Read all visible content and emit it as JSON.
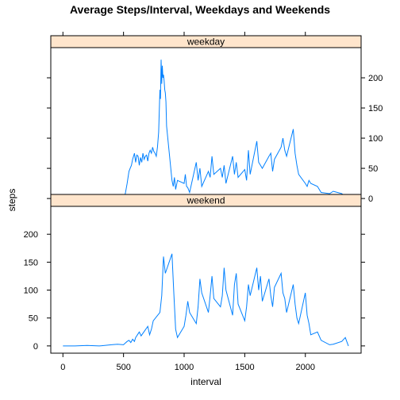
{
  "chart_data": {
    "type": "line",
    "title": "Average Steps/Interval, Weekdays and Weekends",
    "xlabel": "interval",
    "ylabel": "steps",
    "xlim": [
      -100,
      2460
    ],
    "ylim": [
      -13,
      250
    ],
    "x_ticks": [
      "0",
      "500",
      "1000",
      "1500",
      "2000"
    ],
    "y_ticks": [
      "0",
      "50",
      "100",
      "150",
      "200"
    ],
    "line_color": "#0080ff",
    "strip_color": "#ffe5cc",
    "panels": [
      {
        "name": "weekday",
        "x": [
          0,
          100,
          200,
          300,
          400,
          500,
          515,
          530,
          545,
          555,
          565,
          575,
          590,
          600,
          610,
          620,
          630,
          640,
          650,
          660,
          670,
          680,
          690,
          700,
          710,
          720,
          730,
          740,
          750,
          760,
          770,
          780,
          790,
          800,
          805,
          810,
          815,
          820,
          825,
          830,
          835,
          840,
          845,
          850,
          855,
          900,
          910,
          920,
          930,
          945,
          1000,
          1010,
          1020,
          1030,
          1045,
          1100,
          1115,
          1130,
          1145,
          1200,
          1215,
          1230,
          1245,
          1300,
          1315,
          1330,
          1345,
          1400,
          1415,
          1430,
          1445,
          1500,
          1515,
          1530,
          1545,
          1600,
          1615,
          1630,
          1645,
          1700,
          1715,
          1730,
          1745,
          1800,
          1815,
          1830,
          1845,
          1900,
          1915,
          1930,
          1945,
          2000,
          2015,
          2030,
          2045,
          2100,
          2130,
          2200,
          2230,
          2300,
          2330,
          2355
        ],
        "y": [
          2,
          1,
          1,
          0,
          1,
          2,
          8,
          25,
          45,
          50,
          55,
          65,
          75,
          60,
          72,
          70,
          55,
          68,
          60,
          75,
          65,
          70,
          72,
          62,
          75,
          80,
          75,
          85,
          78,
          75,
          70,
          85,
          110,
          180,
          165,
          230,
          190,
          220,
          200,
          205,
          195,
          180,
          175,
          160,
          120,
          30,
          20,
          35,
          15,
          30,
          25,
          40,
          20,
          18,
          10,
          60,
          30,
          50,
          20,
          45,
          35,
          70,
          40,
          50,
          35,
          55,
          25,
          70,
          40,
          60,
          35,
          48,
          30,
          80,
          40,
          95,
          60,
          55,
          50,
          70,
          75,
          45,
          65,
          85,
          100,
          80,
          70,
          115,
          75,
          55,
          40,
          25,
          20,
          30,
          25,
          20,
          10,
          8,
          12,
          8,
          3,
          1
        ]
      },
      {
        "name": "weekend",
        "x": [
          0,
          100,
          200,
          300,
          400,
          450,
          500,
          515,
          530,
          545,
          560,
          575,
          590,
          600,
          615,
          630,
          645,
          700,
          715,
          730,
          745,
          800,
          815,
          830,
          845,
          900,
          915,
          930,
          945,
          1000,
          1015,
          1030,
          1045,
          1100,
          1115,
          1130,
          1145,
          1200,
          1215,
          1230,
          1245,
          1300,
          1315,
          1330,
          1345,
          1400,
          1415,
          1430,
          1445,
          1500,
          1515,
          1530,
          1545,
          1600,
          1615,
          1630,
          1645,
          1700,
          1715,
          1730,
          1745,
          1800,
          1815,
          1830,
          1845,
          1900,
          1915,
          1930,
          1945,
          2000,
          2015,
          2030,
          2045,
          2100,
          2130,
          2200,
          2230,
          2300,
          2330,
          2355
        ],
        "y": [
          0,
          0,
          1,
          0,
          2,
          3,
          2,
          5,
          8,
          10,
          6,
          12,
          8,
          15,
          20,
          25,
          18,
          35,
          20,
          30,
          45,
          60,
          90,
          160,
          130,
          165,
          95,
          30,
          15,
          35,
          55,
          80,
          60,
          40,
          70,
          120,
          95,
          60,
          90,
          125,
          85,
          70,
          90,
          140,
          100,
          55,
          110,
          130,
          75,
          45,
          70,
          110,
          90,
          140,
          100,
          125,
          80,
          120,
          90,
          70,
          105,
          130,
          95,
          85,
          60,
          110,
          75,
          50,
          40,
          95,
          55,
          40,
          20,
          25,
          10,
          2,
          3,
          8,
          15,
          0
        ]
      }
    ]
  }
}
